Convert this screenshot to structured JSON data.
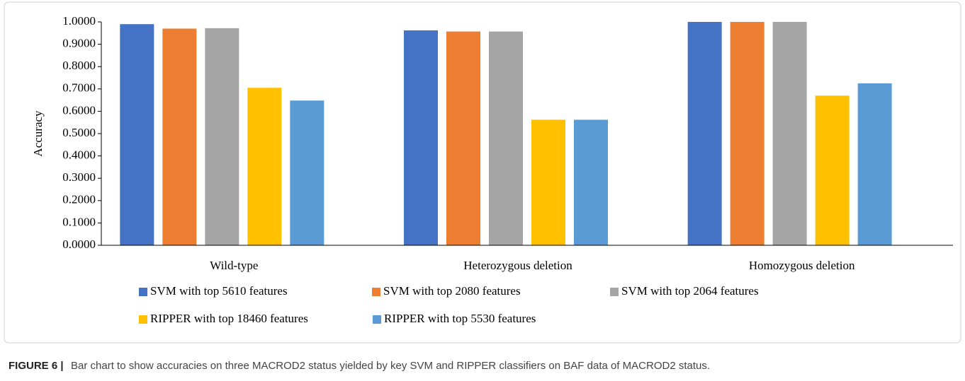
{
  "chart_data": {
    "type": "bar",
    "y_label": "Accuracy",
    "categories": [
      "Wild-type",
      "Heterozygous deletion",
      "Homozygous deletion"
    ],
    "series": [
      {
        "name": "SVM with top 5610 features",
        "color": "#4472c4",
        "values": [
          0.99,
          0.962,
          1.0
        ]
      },
      {
        "name": "SVM with top 2080 features",
        "color": "#ed7d31",
        "values": [
          0.97,
          0.957,
          1.0
        ]
      },
      {
        "name": "SVM with top 2064 features",
        "color": "#a5a5a5",
        "values": [
          0.972,
          0.957,
          1.0
        ]
      },
      {
        "name": "RIPPER with top 18460 features",
        "color": "#ffc000",
        "values": [
          0.705,
          0.562,
          0.67
        ]
      },
      {
        "name": "RIPPER with top 5530 features",
        "color": "#5b9bd5",
        "values": [
          0.648,
          0.562,
          0.725
        ]
      }
    ],
    "ylim": [
      0,
      1
    ],
    "yticks": [
      {
        "value": 0,
        "label": "0.0000"
      },
      {
        "value": 0.1,
        "label": "0.1000"
      },
      {
        "value": 0.2,
        "label": "0.2000"
      },
      {
        "value": 0.3,
        "label": "0.3000"
      },
      {
        "value": 0.4,
        "label": "0.4000"
      },
      {
        "value": 0.5,
        "label": "0.5000"
      },
      {
        "value": 0.6,
        "label": "0.6000"
      },
      {
        "value": 0.7,
        "label": "0.7000"
      },
      {
        "value": 0.8,
        "label": "0.8000"
      },
      {
        "value": 0.9,
        "label": "0.9000"
      },
      {
        "value": 1,
        "label": "1.0000"
      }
    ],
    "grid": false,
    "legend_position": "bottom"
  },
  "caption_label": "FIGURE 6 |",
  "caption": "Bar chart to show accuracies on three MACROD2 status yielded by key SVM and RIPPER classifiers on BAF data of MACROD2 status."
}
